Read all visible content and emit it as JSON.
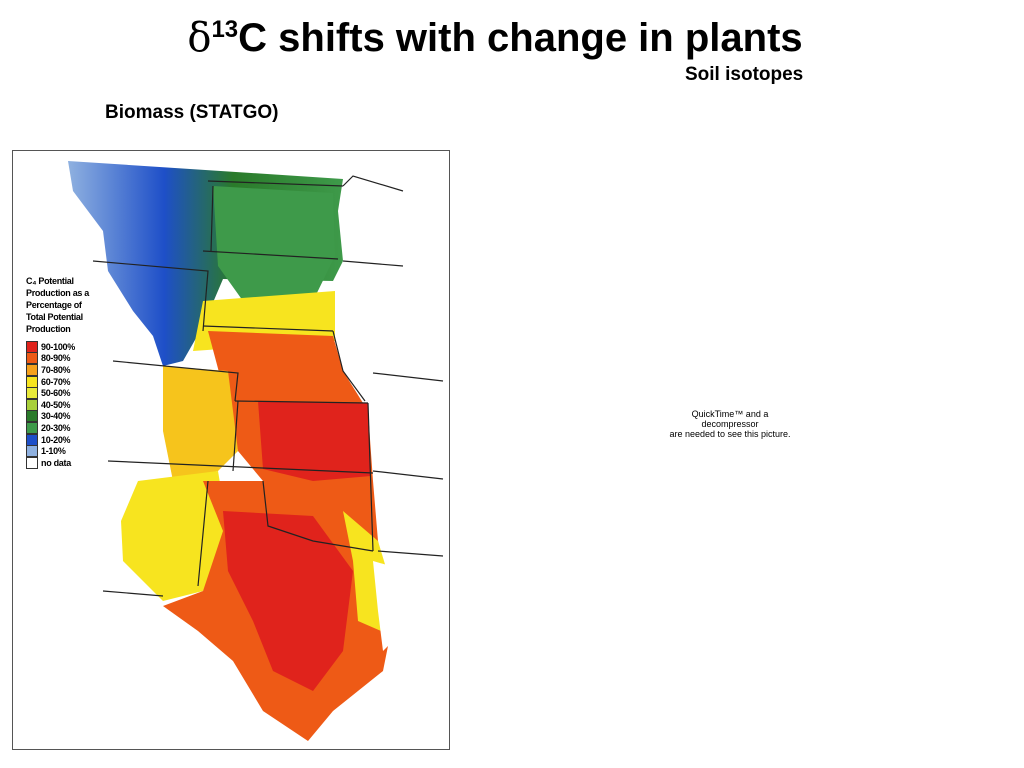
{
  "slide": {
    "title_symbol": "δ",
    "title_superscript": "13",
    "title_text": "C shifts with change in plants",
    "subtitle_right": "Soil isotopes",
    "subtitle_left": "Biomass (STATGO)"
  },
  "map": {
    "legend_title_lines": [
      "C₄ Potential",
      "Production as a",
      "Percentage of",
      "Total Potential",
      "Production"
    ],
    "legend": [
      {
        "label": "90-100%",
        "color": "#e0231c"
      },
      {
        "label": "80-90%",
        "color": "#ee5a16"
      },
      {
        "label": "70-80%",
        "color": "#f6a11c"
      },
      {
        "label": "60-70%",
        "color": "#f7e41f"
      },
      {
        "label": "50-60%",
        "color": "#e9ea3b"
      },
      {
        "label": "40-50%",
        "color": "#a8cf3a"
      },
      {
        "label": "30-40%",
        "color": "#2a7a2a"
      },
      {
        "label": "20-30%",
        "color": "#3e9a4a"
      },
      {
        "label": "10-20%",
        "color": "#1e4fc8"
      },
      {
        "label": "1-10%",
        "color": "#8fb1e0"
      },
      {
        "label": "no data",
        "color": "#ffffff"
      }
    ]
  },
  "placeholder": {
    "lines": [
      "QuickTime™ and a",
      "decompressor",
      "are needed to see this picture."
    ]
  }
}
